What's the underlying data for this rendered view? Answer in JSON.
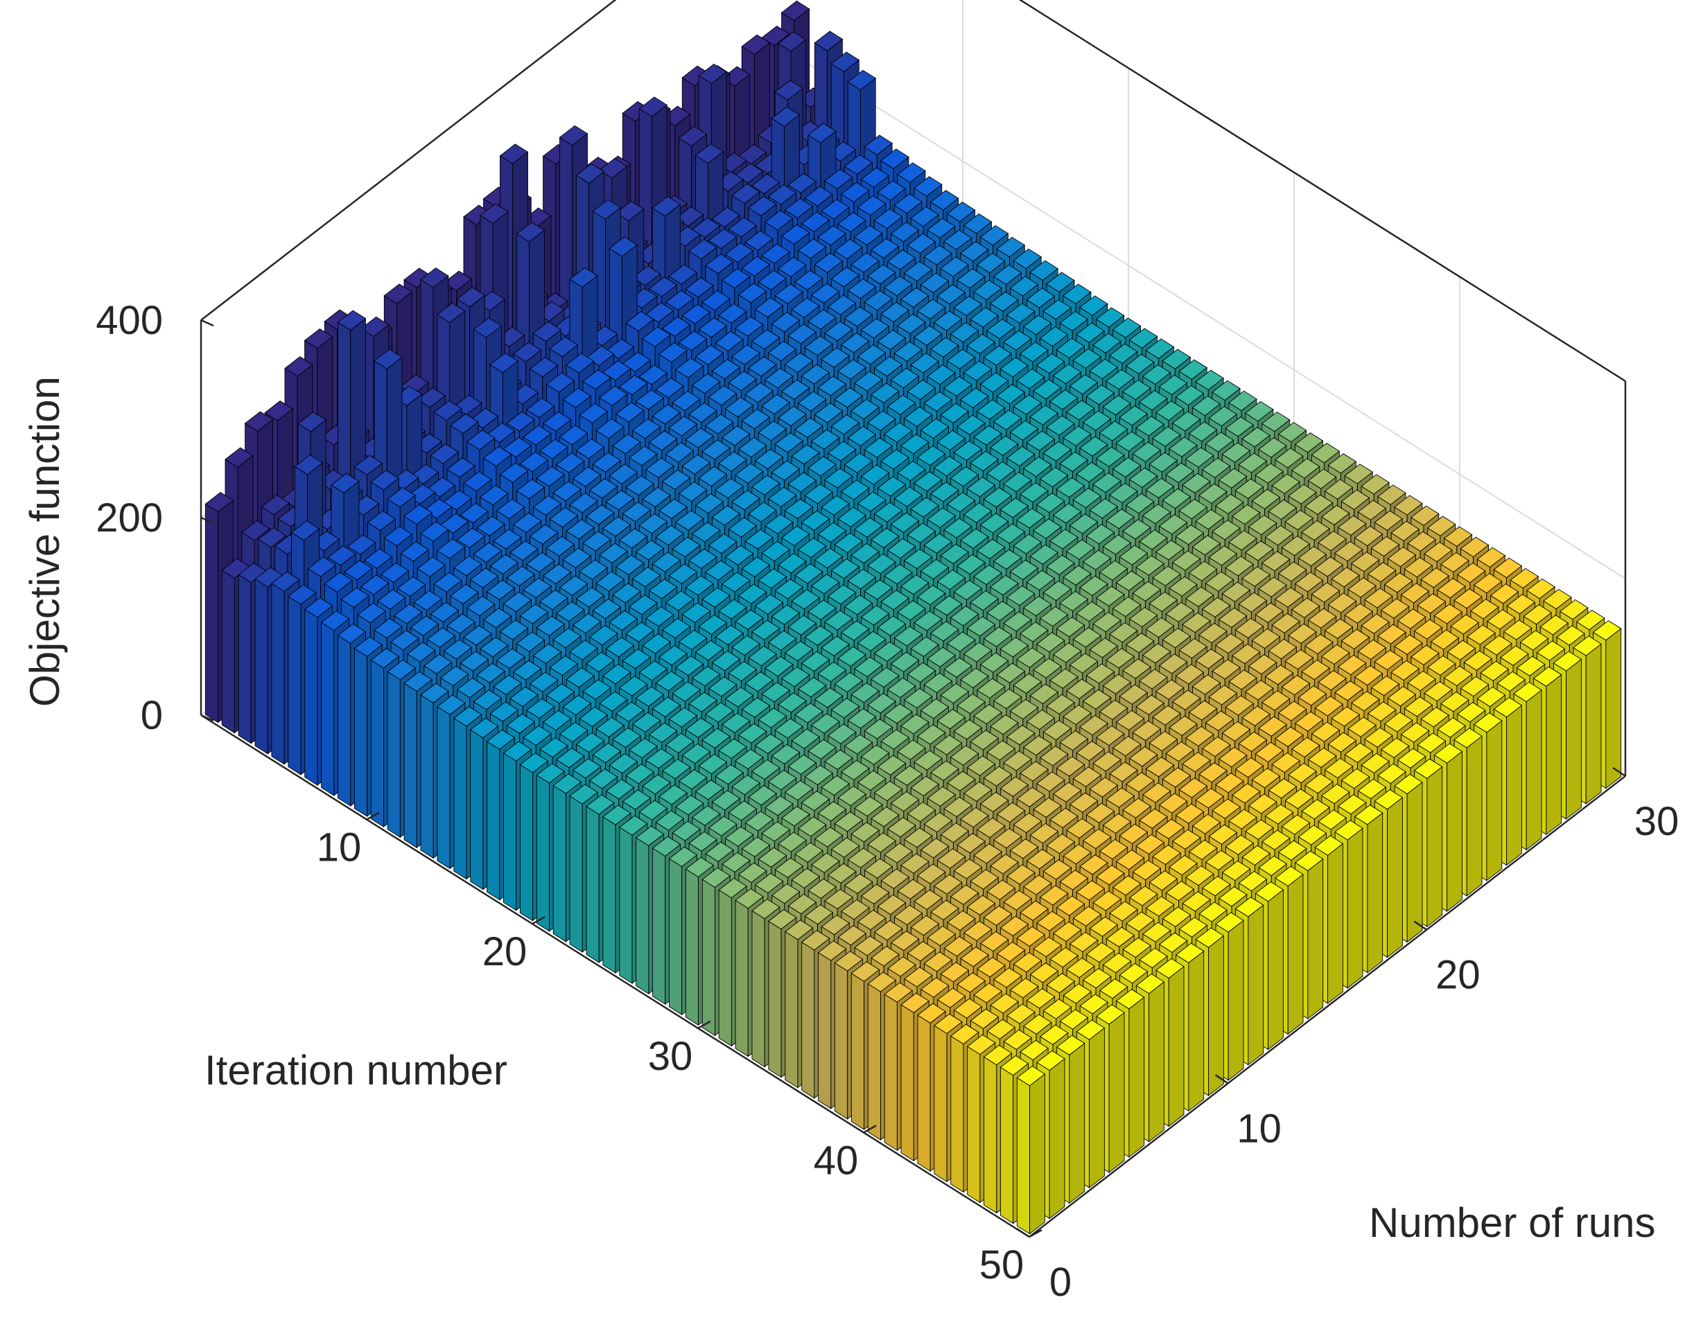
{
  "chart_data": {
    "type": "bar3",
    "xlabel": "Iteration number",
    "ylabel": "Number of runs",
    "zlabel": "Objective function",
    "xlim": [
      0,
      50
    ],
    "ylim": [
      0,
      30
    ],
    "zlim": [
      0,
      400
    ],
    "x_ticks": [
      10,
      20,
      30,
      40,
      50
    ],
    "y_ticks": [
      0,
      10,
      20,
      30
    ],
    "z_ticks": [
      0,
      200,
      400
    ],
    "iterations": 50,
    "runs": 30,
    "grid": true,
    "colormap": "parula (color by iteration number)",
    "colormap_stops": [
      "#352a87",
      "#0f5cdd",
      "#1481d6",
      "#06a4ca",
      "#2eb7a4",
      "#87bf77",
      "#d1bb59",
      "#fec832",
      "#f9fb0e"
    ],
    "description_of_values": "Objective function per run (0-30) and iteration (1-50); highest in early iterations and decaying toward a plateau around 150",
    "values_first_row_peaks": {
      "iteration_1": [
        210,
        270,
        330,
        310,
        350,
        395,
        380,
        330,
        300,
        360,
        345,
        320,
        300,
        380,
        390,
        370,
        300,
        380,
        330,
        305,
        290,
        340,
        310,
        290,
        330,
        300,
        280,
        300,
        290,
        310
      ],
      "iteration_5": [
        175,
        190,
        185,
        180,
        190,
        200,
        185,
        175,
        180,
        195,
        185,
        180,
        178,
        190,
        195,
        185,
        175,
        190,
        182,
        178,
        175,
        185,
        180,
        176,
        182,
        178,
        174,
        176,
        175,
        180
      ],
      "iteration_10": [
        162,
        165,
        164,
        162,
        165,
        166,
        164,
        162,
        163,
        165,
        164,
        163,
        162,
        165,
        165,
        164,
        162,
        164,
        163,
        162,
        162,
        164,
        163,
        162,
        163,
        162,
        161,
        162,
        162,
        163
      ],
      "iteration_20_to_50": 150
    }
  }
}
